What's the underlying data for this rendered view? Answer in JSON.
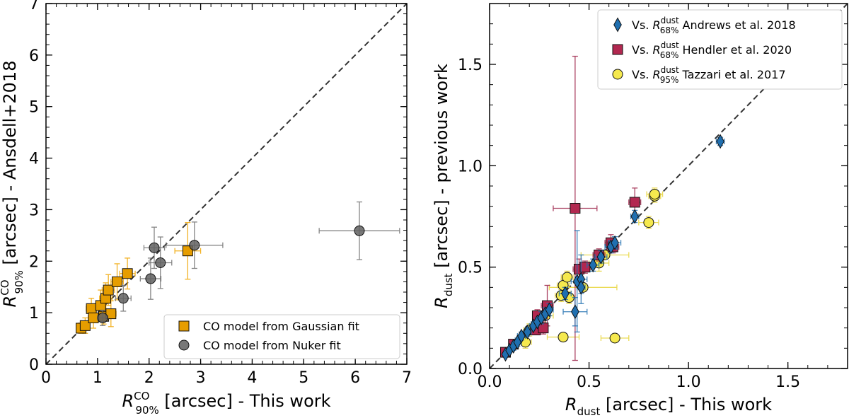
{
  "chart_data": [
    {
      "type": "scatter",
      "xlabel": {
        "sym": "R",
        "sup": "CO",
        "sub": "90%",
        "rest": " [arcsec] - This work"
      },
      "ylabel": {
        "sym": "R",
        "sup": "CO",
        "sub": "90%",
        "rest": " [arcsec] - Ansdell+2018"
      },
      "xlim": [
        0,
        7
      ],
      "ylim": [
        0,
        7
      ],
      "xticks": [
        0,
        1,
        2,
        3,
        4,
        5,
        6,
        7
      ],
      "yticks": [
        0,
        1,
        2,
        3,
        4,
        5,
        6,
        7
      ],
      "legend_position": "bottom-right",
      "one_to_one_line": true,
      "series": [
        {
          "name": "CO model from Gaussian fit",
          "marker": "square",
          "color": "#e69d00",
          "errcolor": "#f0a500",
          "points": [
            {
              "x": 0.68,
              "y": 0.7,
              "xerr": 0.05,
              "yerr": 0.1
            },
            {
              "x": 0.76,
              "y": 0.75,
              "xerr": 0.08,
              "yerr": 0.15
            },
            {
              "x": 0.88,
              "y": 1.08,
              "xerr": 0.1,
              "yerr": 0.2
            },
            {
              "x": 0.92,
              "y": 0.9,
              "xerr": 0.1,
              "yerr": 0.2
            },
            {
              "x": 1.06,
              "y": 1.14,
              "xerr": 0.1,
              "yerr": 0.3
            },
            {
              "x": 1.12,
              "y": 0.93,
              "xerr": 0.1,
              "yerr": 0.15
            },
            {
              "x": 1.16,
              "y": 1.28,
              "xerr": 0.12,
              "yerr": 0.3
            },
            {
              "x": 1.21,
              "y": 1.44,
              "xerr": 0.12,
              "yerr": 0.3
            },
            {
              "x": 1.26,
              "y": 0.98,
              "xerr": 0.1,
              "yerr": 0.25
            },
            {
              "x": 1.38,
              "y": 1.6,
              "xerr": 0.12,
              "yerr": 0.35
            },
            {
              "x": 1.58,
              "y": 1.76,
              "xerr": 0.15,
              "yerr": 0.3
            },
            {
              "x": 2.75,
              "y": 2.2,
              "xerr": 0.25,
              "yerr": 0.55
            }
          ]
        },
        {
          "name": "CO model from Nuker fit",
          "marker": "circle",
          "color": "#606060",
          "errcolor": "#707070",
          "points": [
            {
              "x": 1.1,
              "y": 0.9,
              "xerr": 0.1,
              "yerr": 0.15
            },
            {
              "x": 1.5,
              "y": 1.28,
              "xerr": 0.15,
              "yerr": 0.25
            },
            {
              "x": 2.03,
              "y": 1.66,
              "xerr": 0.2,
              "yerr": 0.4
            },
            {
              "x": 2.1,
              "y": 2.26,
              "xerr": 0.2,
              "yerr": 0.4
            },
            {
              "x": 2.22,
              "y": 1.97,
              "xerr": 0.22,
              "yerr": 0.5
            },
            {
              "x": 2.88,
              "y": 2.31,
              "xerr": 0.55,
              "yerr": 0.45
            },
            {
              "x": 6.08,
              "y": 2.59,
              "xerr": 0.78,
              "yerr": 0.56
            }
          ]
        }
      ]
    },
    {
      "type": "scatter",
      "xlabel": {
        "sym": "R",
        "sup": "",
        "sub": "dust",
        "rest": " [arcsec] - This work"
      },
      "ylabel": {
        "sym": "R",
        "sup": "",
        "sub": "dust",
        "rest": " [arcsec] - previous work"
      },
      "xlim": [
        0,
        1.8
      ],
      "ylim": [
        0,
        1.8
      ],
      "xticks": [
        0.0,
        0.5,
        1.0,
        1.5
      ],
      "xtick_labels": [
        "0.0",
        "0.5",
        "1.0",
        "1.5"
      ],
      "yticks": [
        0.0,
        0.5,
        1.0,
        1.5
      ],
      "ytick_labels": [
        "0.0",
        "0.5",
        "1.0",
        "1.5"
      ],
      "legend_position": "top-right",
      "one_to_one_line": true,
      "series": [
        {
          "name": "Tazzari et al. 2017",
          "label_prefix": "Vs. ",
          "label_sym": "R",
          "label_sup": "dust",
          "label_sub": "95%",
          "label_suffix": " Tazzari et al. 2017",
          "marker": "circle",
          "color": "#f5e94e",
          "errcolor": "#e8d53a",
          "points": [
            {
              "x": 0.63,
              "y": 0.15,
              "xerr": 0.07,
              "yerr": 0.0
            },
            {
              "x": 0.37,
              "y": 0.155,
              "xerr": 0.08,
              "yerr": 0.0
            },
            {
              "x": 0.18,
              "y": 0.13,
              "xerr": 0.03,
              "yerr": 0.03
            },
            {
              "x": 0.2,
              "y": 0.19,
              "xerr": 0.03,
              "yerr": 0.03
            },
            {
              "x": 0.28,
              "y": 0.26,
              "xerr": 0.04,
              "yerr": 0.05
            },
            {
              "x": 0.36,
              "y": 0.36,
              "xerr": 0.03,
              "yerr": 0.03
            },
            {
              "x": 0.37,
              "y": 0.41,
              "xerr": 0.03,
              "yerr": 0.03
            },
            {
              "x": 0.39,
              "y": 0.45,
              "xerr": 0.03,
              "yerr": 0.03
            },
            {
              "x": 0.4,
              "y": 0.35,
              "xerr": 0.03,
              "yerr": 0.03
            },
            {
              "x": 0.47,
              "y": 0.4,
              "xerr": 0.17,
              "yerr": 0.0
            },
            {
              "x": 0.55,
              "y": 0.52,
              "xerr": 0.05,
              "yerr": 0.04
            },
            {
              "x": 0.58,
              "y": 0.56,
              "xerr": 0.12,
              "yerr": 0.0
            },
            {
              "x": 0.8,
              "y": 0.72,
              "xerr": 0.05,
              "yerr": 0.03
            },
            {
              "x": 0.83,
              "y": 0.85,
              "xerr": 0.03,
              "yerr": 0.03
            },
            {
              "x": 0.83,
              "y": 0.86,
              "xerr": 0.04,
              "yerr": 0.03
            }
          ]
        },
        {
          "name": "Hendler et al. 2020",
          "label_prefix": "Vs. ",
          "label_sym": "R",
          "label_sup": "dust",
          "label_sub": "68%",
          "label_suffix": " Hendler et al. 2020",
          "marker": "square",
          "color": "#b22850",
          "errcolor": "#9d2248",
          "points": [
            {
              "x": 0.08,
              "y": 0.08,
              "xerr": 0.01,
              "yerr": 0.01
            },
            {
              "x": 0.12,
              "y": 0.12,
              "xerr": 0.01,
              "yerr": 0.02
            },
            {
              "x": 0.23,
              "y": 0.19,
              "xerr": 0.02,
              "yerr": 0.02
            },
            {
              "x": 0.24,
              "y": 0.26,
              "xerr": 0.02,
              "yerr": 0.03
            },
            {
              "x": 0.27,
              "y": 0.2,
              "xerr": 0.02,
              "yerr": 0.03
            },
            {
              "x": 0.29,
              "y": 0.31,
              "xerr": 0.03,
              "yerr": 0.1
            },
            {
              "x": 0.43,
              "y": 0.79,
              "xerr": 0.11,
              "yerr": 0.75
            },
            {
              "x": 0.45,
              "y": 0.49,
              "xerr": 0.03,
              "yerr": 0.05
            },
            {
              "x": 0.48,
              "y": 0.5,
              "xerr": 0.03,
              "yerr": 0.03
            },
            {
              "x": 0.55,
              "y": 0.56,
              "xerr": 0.03,
              "yerr": 0.03
            },
            {
              "x": 0.61,
              "y": 0.62,
              "xerr": 0.03,
              "yerr": 0.04
            },
            {
              "x": 0.62,
              "y": 0.6,
              "xerr": 0.03,
              "yerr": 0.03
            },
            {
              "x": 0.73,
              "y": 0.82,
              "xerr": 0.03,
              "yerr": 0.07
            }
          ]
        },
        {
          "name": "Andrews et al. 2018",
          "label_prefix": "Vs. ",
          "label_sym": "R",
          "label_sup": "dust",
          "label_sub": "68%",
          "label_suffix": " Andrews et al. 2018",
          "marker": "diamond",
          "color": "#1f6fb0",
          "errcolor": "#1f6fb0",
          "points": [
            {
              "x": 0.08,
              "y": 0.07,
              "xerr": 0.01,
              "yerr": 0.01
            },
            {
              "x": 0.1,
              "y": 0.09,
              "xerr": 0.01,
              "yerr": 0.01
            },
            {
              "x": 0.12,
              "y": 0.11,
              "xerr": 0.01,
              "yerr": 0.02
            },
            {
              "x": 0.14,
              "y": 0.13,
              "xerr": 0.02,
              "yerr": 0.02
            },
            {
              "x": 0.16,
              "y": 0.16,
              "xerr": 0.02,
              "yerr": 0.02
            },
            {
              "x": 0.19,
              "y": 0.18,
              "xerr": 0.02,
              "yerr": 0.02
            },
            {
              "x": 0.22,
              "y": 0.21,
              "xerr": 0.02,
              "yerr": 0.02
            },
            {
              "x": 0.24,
              "y": 0.23,
              "xerr": 0.02,
              "yerr": 0.02
            },
            {
              "x": 0.26,
              "y": 0.25,
              "xerr": 0.02,
              "yerr": 0.03
            },
            {
              "x": 0.28,
              "y": 0.27,
              "xerr": 0.02,
              "yerr": 0.03
            },
            {
              "x": 0.3,
              "y": 0.29,
              "xerr": 0.02,
              "yerr": 0.03
            },
            {
              "x": 0.38,
              "y": 0.37,
              "xerr": 0.03,
              "yerr": 0.03
            },
            {
              "x": 0.43,
              "y": 0.28,
              "xerr": 0.06,
              "yerr": 0.07
            },
            {
              "x": 0.44,
              "y": 0.43,
              "xerr": 0.03,
              "yerr": 0.25
            },
            {
              "x": 0.46,
              "y": 0.44,
              "xerr": 0.03,
              "yerr": 0.12
            },
            {
              "x": 0.46,
              "y": 0.4,
              "xerr": 0.02,
              "yerr": 0.03
            },
            {
              "x": 0.52,
              "y": 0.51,
              "xerr": 0.03,
              "yerr": 0.03
            },
            {
              "x": 0.56,
              "y": 0.55,
              "xerr": 0.03,
              "yerr": 0.03
            },
            {
              "x": 0.61,
              "y": 0.6,
              "xerr": 0.03,
              "yerr": 0.03
            },
            {
              "x": 0.63,
              "y": 0.62,
              "xerr": 0.03,
              "yerr": 0.03
            },
            {
              "x": 0.73,
              "y": 0.75,
              "xerr": 0.02,
              "yerr": 0.03
            },
            {
              "x": 1.16,
              "y": 1.12,
              "xerr": 0.02,
              "yerr": 0.02
            }
          ]
        }
      ],
      "legend_order": [
        "Andrews et al. 2018",
        "Hendler et al. 2020",
        "Tazzari et al. 2017"
      ]
    }
  ]
}
